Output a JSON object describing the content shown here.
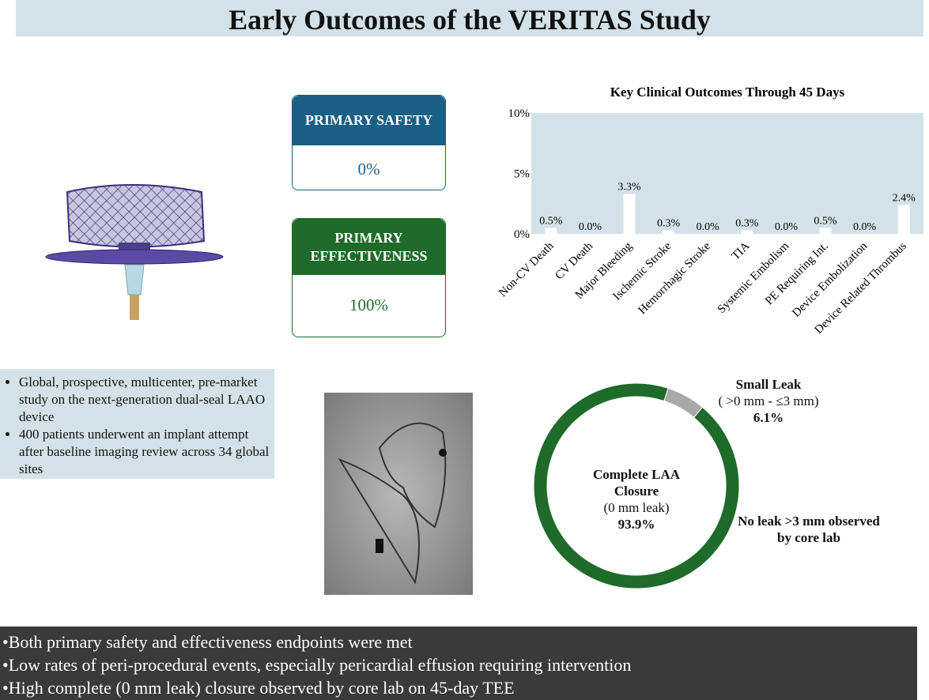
{
  "title": "Early Outcomes of the VERITAS Study",
  "endpoints": [
    {
      "label": "PRIMARY SAFETY",
      "value": "0%"
    },
    {
      "label": "PRIMARY EFFECTIVENESS",
      "value": "100%"
    }
  ],
  "study_bullets": [
    "Global, prospective, multicenter, pre-market study on the next-generation dual-seal LAAO device",
    "400 patients underwent an implant attempt after baseline imaging review across 34 global sites"
  ],
  "conclusions": [
    "Both primary safety and effectiveness endpoints were met",
    "Low rates of peri-procedural events, especially pericardial effusion requiring intervention",
    "High complete (0 mm leak) closure observed by core lab on 45-day TEE"
  ],
  "chart_data": [
    {
      "type": "bar",
      "title": "Key Clinical Outcomes Through 45 Days",
      "categories": [
        "Non-CV Death",
        "CV Death",
        "Major Bleeding",
        "Ischemic Stroke",
        "Hemorrhagic Stroke",
        "TIA",
        "Systemic Embolism",
        "PE Requiring Int.",
        "Device Embolization",
        "Device Related Thrombus"
      ],
      "values": [
        0.5,
        0.0,
        3.3,
        0.3,
        0.0,
        0.3,
        0.0,
        0.5,
        0.0,
        2.4
      ],
      "value_labels": [
        "0.5%",
        "0.0%",
        "3.3%",
        "0.3%",
        "0.0%",
        "0.3%",
        "0.0%",
        "0.5%",
        "0.0%",
        "2.4%"
      ],
      "color": "#ffffff",
      "background": "#d3e2e8",
      "ylim": [
        0,
        10
      ],
      "yticks": [
        {
          "value": 0,
          "label": "0%"
        },
        {
          "value": 5,
          "label": "5%"
        },
        {
          "value": 10,
          "label": "10%"
        }
      ]
    },
    {
      "type": "pie",
      "categories": [
        "Complete LAA Closure",
        "Small Leak"
      ],
      "descriptions": [
        "(0 mm leak)",
        "( >0 mm - ≤3 mm)"
      ],
      "values": [
        93.9,
        6.1
      ],
      "value_labels": [
        "93.9%",
        "6.1%"
      ],
      "colors": [
        "#1e6b2a",
        "#a9a9a9"
      ],
      "annotation": "No leak >3 mm observed by core lab"
    }
  ]
}
